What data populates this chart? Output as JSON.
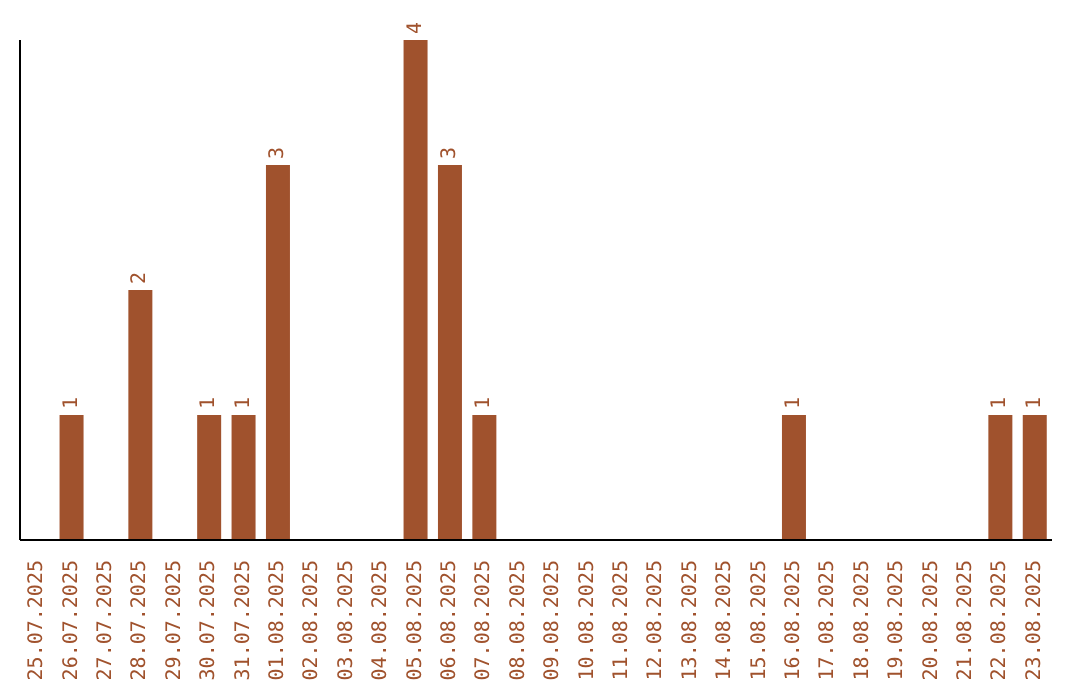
{
  "chart_data": {
    "type": "bar",
    "categories": [
      "25.07.2025",
      "26.07.2025",
      "27.07.2025",
      "28.07.2025",
      "29.07.2025",
      "30.07.2025",
      "31.07.2025",
      "01.08.2025",
      "02.08.2025",
      "03.08.2025",
      "04.08.2025",
      "05.08.2025",
      "06.08.2025",
      "07.08.2025",
      "08.08.2025",
      "09.08.2025",
      "10.08.2025",
      "11.08.2025",
      "12.08.2025",
      "13.08.2025",
      "14.08.2025",
      "15.08.2025",
      "16.08.2025",
      "17.08.2025",
      "18.08.2025",
      "19.08.2025",
      "20.08.2025",
      "21.08.2025",
      "22.08.2025",
      "23.08.2025"
    ],
    "values": [
      0,
      1,
      0,
      2,
      0,
      1,
      1,
      3,
      0,
      0,
      0,
      4,
      3,
      1,
      0,
      0,
      0,
      0,
      0,
      0,
      0,
      0,
      1,
      0,
      0,
      0,
      0,
      0,
      1,
      1
    ],
    "value_labels": [
      null,
      "1",
      null,
      "2",
      null,
      "1",
      "1",
      "3",
      null,
      null,
      null,
      "4",
      "3",
      "1",
      null,
      null,
      null,
      null,
      null,
      null,
      null,
      null,
      "1",
      null,
      null,
      null,
      null,
      null,
      "1",
      "1"
    ],
    "color": "#a0522d",
    "ylim": [
      0,
      4
    ],
    "tick_labels": "x"
  }
}
